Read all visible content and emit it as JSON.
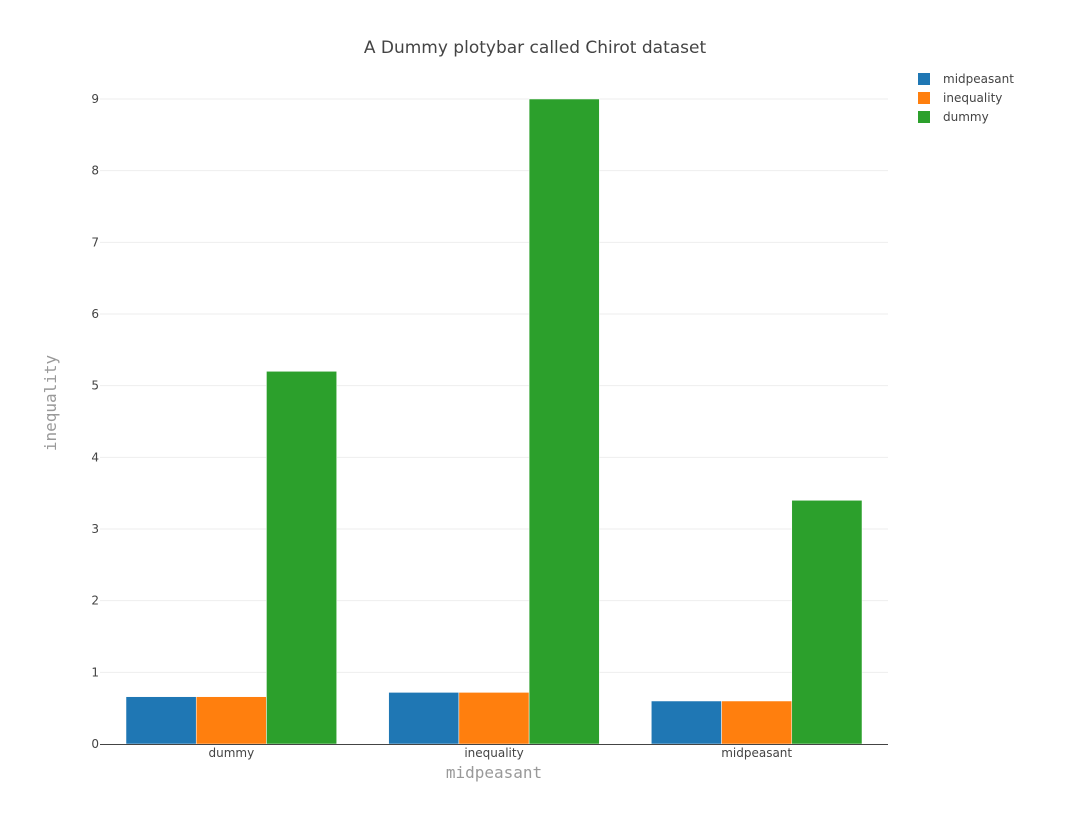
{
  "chart_data": {
    "type": "bar",
    "title": "A Dummy plotybar called Chirot dataset",
    "xlabel": "midpeasant",
    "ylabel": "inequality",
    "categories": [
      "dummy",
      "inequality",
      "midpeasant"
    ],
    "series": [
      {
        "name": "midpeasant",
        "color": "#1f77b4",
        "values": [
          0.66,
          0.72,
          0.6
        ]
      },
      {
        "name": "inequality",
        "color": "#ff7f0e",
        "values": [
          0.66,
          0.72,
          0.6
        ]
      },
      {
        "name": "dummy",
        "color": "#2ca02c",
        "values": [
          5.2,
          9.0,
          3.4
        ]
      }
    ],
    "ylim": [
      0,
      9.2
    ],
    "yticks": [
      0,
      1,
      2,
      3,
      4,
      5,
      6,
      7,
      8,
      9
    ],
    "grid": true,
    "legend_position": "top-right"
  }
}
